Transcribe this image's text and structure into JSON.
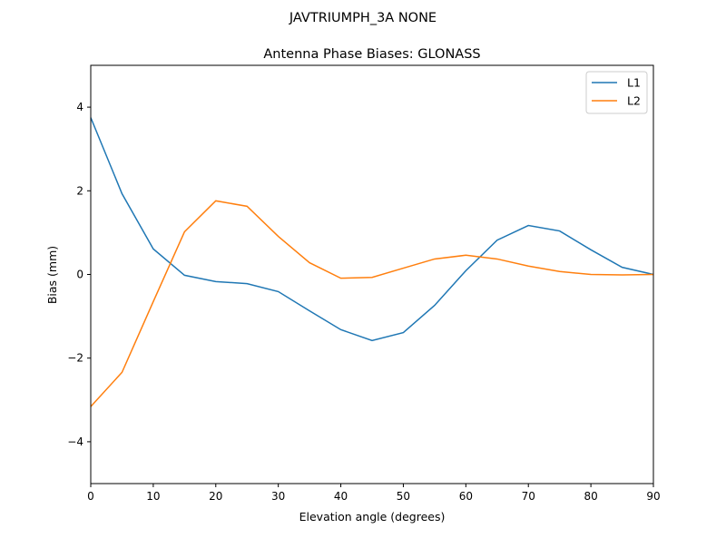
{
  "chart_data": {
    "type": "line",
    "suptitle": "JAVTRIUMPH_3A   NONE",
    "title": "Antenna Phase Biases: GLONASS",
    "xlabel": "Elevation angle (degrees)",
    "ylabel": "Bias (mm)",
    "xlim": [
      0,
      90
    ],
    "ylim": [
      -5,
      5
    ],
    "xticks": [
      0,
      10,
      20,
      30,
      40,
      50,
      60,
      70,
      80,
      90
    ],
    "yticks": [
      -4,
      -2,
      0,
      2,
      4
    ],
    "ytick_labels": [
      "−4",
      "−2",
      "0",
      "2",
      "4"
    ],
    "grid": false,
    "legend_position": "top-right",
    "x": [
      0,
      5,
      10,
      15,
      20,
      25,
      30,
      35,
      40,
      45,
      50,
      55,
      60,
      65,
      70,
      75,
      80,
      85,
      90
    ],
    "series": [
      {
        "name": "L1",
        "color": "#1f77b4",
        "values": [
          3.75,
          1.93,
          0.61,
          -0.02,
          -0.17,
          -0.22,
          -0.41,
          -0.87,
          -1.32,
          -1.58,
          -1.39,
          -0.74,
          0.09,
          0.82,
          1.17,
          1.04,
          0.59,
          0.17,
          0.0
        ]
      },
      {
        "name": "L2",
        "color": "#ff7f0e",
        "values": [
          -3.16,
          -2.34,
          -0.65,
          1.02,
          1.76,
          1.63,
          0.91,
          0.28,
          -0.09,
          -0.07,
          0.15,
          0.37,
          0.46,
          0.37,
          0.2,
          0.07,
          0.0,
          -0.01,
          0.0
        ]
      }
    ]
  }
}
